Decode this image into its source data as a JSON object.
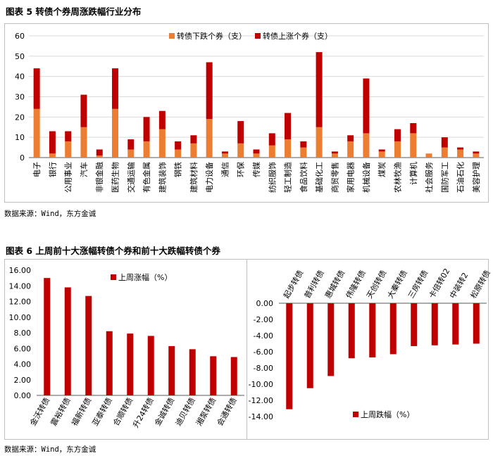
{
  "fig5": {
    "title": "图表 5  转债个券周涨跌幅行业分布",
    "source": "数据来源：Wind，东方金诚"
  },
  "fig6": {
    "title": "图表 6  上周前十大涨幅转债个券和前十大跌幅转债个券",
    "source": "数据来源：Wind，东方金诚"
  },
  "colors": {
    "orange": "#ED7D31",
    "red": "#C00000",
    "grid": "#D9D9D9",
    "axis": "#595959"
  },
  "chart_data": [
    {
      "type": "bar",
      "stacked": true,
      "title": "",
      "ylim": [
        0,
        60
      ],
      "yticks": [
        0,
        10,
        20,
        30,
        40,
        50,
        60
      ],
      "grid": true,
      "legend": "top-center",
      "categories": [
        "电子",
        "银行",
        "公用事业",
        "汽车",
        "非银金融",
        "医药生物",
        "交通运输",
        "有色金属",
        "建筑装饰",
        "钢铁",
        "建筑材料",
        "电力设备",
        "通信",
        "环保",
        "传媒",
        "纺织服饰",
        "轻工制造",
        "食品饮料",
        "基础化工",
        "商贸零售",
        "家用电器",
        "机械设备",
        "煤炭",
        "农林牧渔",
        "计算机",
        "社会服务",
        "国防军工",
        "石油石化",
        "美容护理"
      ],
      "series": [
        {
          "name": "转债下跌个券（支）",
          "color": "#ED7D31",
          "values": [
            24,
            2,
            8,
            15,
            1,
            24,
            4,
            8,
            14,
            4,
            7,
            19,
            2,
            7,
            2,
            6,
            9,
            5,
            15,
            2,
            8,
            12,
            3,
            8,
            12,
            2,
            5,
            4,
            2
          ]
        },
        {
          "name": "转债上涨个券（支）",
          "color": "#C00000",
          "values": [
            20,
            11,
            5,
            16,
            3,
            20,
            5,
            12,
            9,
            4,
            4,
            28,
            1,
            11,
            2,
            6,
            13,
            3,
            37,
            1,
            3,
            27,
            1,
            6,
            5,
            0,
            5,
            1,
            1
          ]
        }
      ]
    },
    {
      "type": "bar",
      "title": "",
      "ylim": [
        0,
        16
      ],
      "yticks": [
        "0.00",
        "2.00",
        "4.00",
        "6.00",
        "8.00",
        "10.00",
        "12.00",
        "14.00",
        "16.00"
      ],
      "legend": "top-center",
      "categories": [
        "金沃转债",
        "震裕转债",
        "福新转债",
        "亚泰转债",
        "合顺转债",
        "升24转债",
        "金诚转债",
        "迪贝转债",
        "湘泵转债",
        "会通转债"
      ],
      "series": [
        {
          "name": "上周涨幅（%）",
          "color": "#C00000",
          "values": [
            15.0,
            13.8,
            12.7,
            8.2,
            7.9,
            7.6,
            6.3,
            5.9,
            5.0,
            4.9
          ]
        }
      ]
    },
    {
      "type": "bar",
      "title": "",
      "ylim": [
        -14,
        0
      ],
      "yticks": [
        "0.00",
        "-2.00",
        "-4.00",
        "-6.00",
        "-8.00",
        "-10.00",
        "-12.00",
        "-14.00"
      ],
      "legend": "bottom-center",
      "categories": [
        "起步转债",
        "普利转债",
        "惠城转债",
        "伟隆转债",
        "天创转债",
        "大秦转债",
        "三房转债",
        "卡倍转02",
        "中装转2",
        "松原转债"
      ],
      "series": [
        {
          "name": "上周跌幅（%）",
          "color": "#C00000",
          "values": [
            -13.1,
            -10.5,
            -9.0,
            -6.8,
            -6.7,
            -6.3,
            -5.3,
            -5.2,
            -5.1,
            -5.0
          ]
        }
      ]
    }
  ]
}
